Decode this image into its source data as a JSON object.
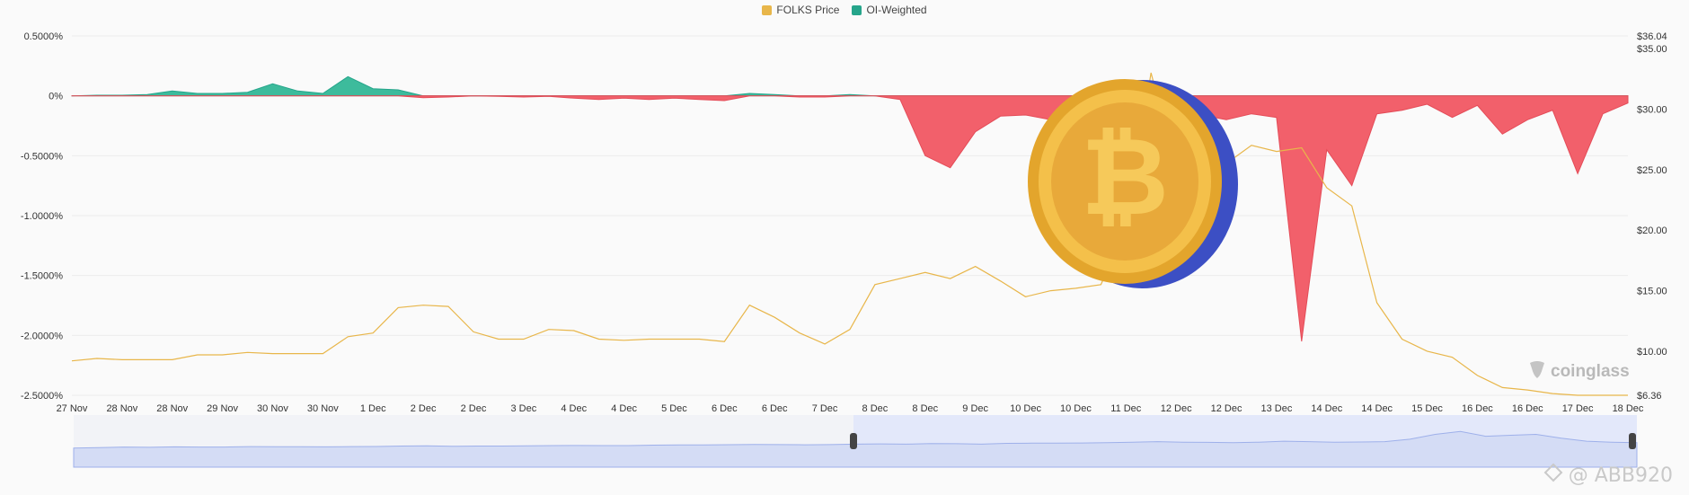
{
  "chart_data": {
    "type": "line",
    "title": "",
    "legend": {
      "placement": "top-center",
      "items": [
        {
          "name": "FOLKS Price",
          "color": "#e8b64a"
        },
        {
          "name": "OI-Weighted",
          "color": "#26a58b"
        }
      ]
    },
    "x_tick_labels": [
      "27 Nov",
      "28 Nov",
      "28 Nov",
      "29 Nov",
      "30 Nov",
      "30 Nov",
      "1 Dec",
      "2 Dec",
      "2 Dec",
      "3 Dec",
      "4 Dec",
      "4 Dec",
      "5 Dec",
      "6 Dec",
      "6 Dec",
      "7 Dec",
      "8 Dec",
      "8 Dec",
      "9 Dec",
      "10 Dec",
      "10 Dec",
      "11 Dec",
      "12 Dec",
      "12 Dec",
      "13 Dec",
      "14 Dec",
      "14 Dec",
      "15 Dec",
      "16 Dec",
      "16 Dec",
      "17 Dec",
      "18 Dec"
    ],
    "y_left": {
      "ticks": [
        "0.5000%",
        "0%",
        "-0.5000%",
        "-1.0000%",
        "-1.5000%",
        "-2.0000%",
        "-2.5000%"
      ],
      "range": [
        -2.5,
        0.5
      ],
      "unit": "%"
    },
    "y_right": {
      "ticks": [
        "$36.04",
        "$35.00",
        "$30.00",
        "$25.00",
        "$20.00",
        "$15.00",
        "$10.00",
        "$6.36"
      ],
      "range": [
        6.36,
        36.04
      ]
    },
    "grid": true,
    "series": [
      {
        "name": "OI-Weighted",
        "axis": "left",
        "positive_color": "#3dbb9c",
        "negative_color": "#f2606b",
        "x": [
          0,
          0.5,
          1,
          1.5,
          2,
          2.5,
          3,
          3.5,
          4,
          4.5,
          5,
          5.5,
          6,
          6.5,
          7,
          7.5,
          8,
          8.5,
          9,
          9.5,
          10,
          10.5,
          11,
          11.5,
          12,
          12.5,
          13,
          13.5,
          14,
          14.5,
          15,
          15.5,
          16,
          16.5,
          17,
          17.5,
          18,
          18.5,
          19,
          19.5,
          20,
          20.5,
          21,
          21.5,
          22,
          22.5,
          23,
          23.5,
          24,
          24.5,
          25,
          25.5,
          26,
          26.5,
          27,
          27.5,
          28,
          28.5,
          29,
          29.5,
          30,
          30.5,
          31
        ],
        "values": [
          0,
          0.005,
          0.005,
          0.01,
          0.04,
          0.02,
          0.02,
          0.03,
          0.1,
          0.04,
          0.02,
          0.16,
          0.06,
          0.05,
          -0.015,
          -0.01,
          0,
          -0.005,
          -0.01,
          -0.005,
          -0.02,
          -0.03,
          -0.02,
          -0.03,
          -0.02,
          -0.03,
          -0.04,
          0.02,
          0.01,
          -0.01,
          -0.01,
          0.01,
          0.0,
          -0.03,
          -0.5,
          -0.6,
          -0.3,
          -0.17,
          -0.16,
          -0.2,
          -0.3,
          -0.4,
          -0.7,
          -0.25,
          -0.18,
          -0.16,
          -0.2,
          -0.15,
          -0.18,
          -2.05,
          -0.45,
          -0.75,
          -0.15,
          -0.12,
          -0.07,
          -0.18,
          -0.08,
          -0.32,
          -0.2,
          -0.12,
          -0.65,
          -0.15,
          -0.06
        ]
      },
      {
        "name": "FOLKS Price",
        "axis": "right",
        "color": "#e8b64a",
        "x": [
          0,
          0.5,
          1,
          1.5,
          2,
          2.5,
          3,
          3.5,
          4,
          4.5,
          5,
          5.5,
          6,
          6.5,
          7,
          7.5,
          8,
          8.5,
          9,
          9.5,
          10,
          10.5,
          11,
          11.5,
          12,
          12.5,
          13,
          13.5,
          14,
          14.5,
          15,
          15.5,
          16,
          16.5,
          17,
          17.5,
          18,
          18.5,
          19,
          19.5,
          20,
          20.5,
          21,
          21.5,
          22,
          22.5,
          23,
          23.5,
          24,
          24.5,
          25,
          25.5,
          26,
          26.5,
          27,
          27.5,
          28,
          28.5,
          29,
          29.5,
          30,
          30.5,
          31
        ],
        "values": [
          9.2,
          9.4,
          9.3,
          9.3,
          9.3,
          9.7,
          9.7,
          9.9,
          9.8,
          9.8,
          9.8,
          11.2,
          11.5,
          13.6,
          13.8,
          13.7,
          11.6,
          11.0,
          11.0,
          11.8,
          11.7,
          11.0,
          10.9,
          11.0,
          11.0,
          11.0,
          10.8,
          13.8,
          12.8,
          11.5,
          10.6,
          11.8,
          15.5,
          16.0,
          16.5,
          16.0,
          17.0,
          15.8,
          14.5,
          15.0,
          15.2,
          15.5,
          20.0,
          33.0,
          25.0,
          26.0,
          25.5,
          27.0,
          26.5,
          26.8,
          23.5,
          22.0,
          14.0,
          11.0,
          10.0,
          9.5,
          8.0,
          7.0,
          6.8,
          6.5,
          6.36,
          6.36,
          6.36
        ]
      }
    ]
  },
  "navigator": {
    "values": [
      0.3,
      0.35,
      0.4,
      0.38,
      0.42,
      0.4,
      0.4,
      0.45,
      0.44,
      0.43,
      0.42,
      0.45,
      0.46,
      0.5,
      0.52,
      0.48,
      0.5,
      0.5,
      0.52,
      0.55,
      0.56,
      0.55,
      0.55,
      0.6,
      0.62,
      0.62,
      0.64,
      0.66,
      0.65,
      0.63,
      0.65,
      0.7,
      0.72,
      0.7,
      0.75,
      0.74,
      0.7,
      0.78,
      0.8,
      0.8,
      0.82,
      0.85,
      0.9,
      0.95,
      0.9,
      0.88,
      0.85,
      0.9,
      1.0,
      0.95,
      0.9,
      0.92,
      0.95,
      1.2,
      1.7,
      2.0,
      1.5,
      1.6,
      1.7,
      1.3,
      1.0,
      0.9,
      0.85
    ]
  },
  "brand": {
    "name": "coinglass"
  },
  "watermark": {
    "text": "@ ABB920"
  }
}
